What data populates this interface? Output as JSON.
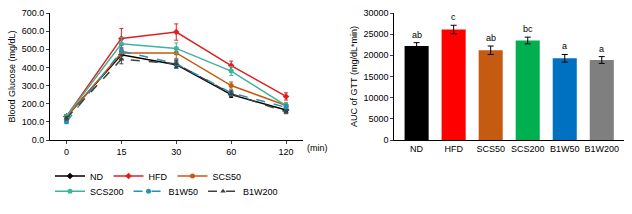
{
  "chart_data": [
    {
      "type": "line",
      "y_label": "Blood Glucose (mg/dL)",
      "x_label": "(min)",
      "categories": [
        "0",
        "15",
        "30",
        "60",
        "120"
      ],
      "ylim": [
        0,
        700
      ],
      "yticks": [
        {
          "value": 0,
          "label": "0.0"
        },
        {
          "value": 100,
          "label": "100.0"
        },
        {
          "value": 200,
          "label": "200.0"
        },
        {
          "value": 300,
          "label": "300.0"
        },
        {
          "value": 400,
          "label": "400.0"
        },
        {
          "value": 500,
          "label": "500.0"
        },
        {
          "value": 600,
          "label": "600.0"
        },
        {
          "value": 700,
          "label": "700.0"
        }
      ],
      "grid": false,
      "legend": "bottom",
      "series": [
        {
          "name": "ND",
          "color": "#000000",
          "marker": "diamond",
          "line_style": "solid",
          "values": [
            130,
            470,
            415,
            250,
            165
          ],
          "errors": [
            10,
            25,
            20,
            15,
            10
          ]
        },
        {
          "name": "HFD",
          "color": "#e02020",
          "marker": "diamond",
          "line_style": "solid",
          "values": [
            130,
            560,
            595,
            410,
            240
          ],
          "errors": [
            10,
            55,
            45,
            25,
            20
          ]
        },
        {
          "name": "SCS50",
          "color": "#c55a11",
          "marker": "circle",
          "line_style": "solid",
          "values": [
            125,
            480,
            480,
            300,
            190
          ],
          "errors": [
            10,
            30,
            30,
            20,
            15
          ]
        },
        {
          "name": "SCS200",
          "color": "#3cb39b",
          "marker": "circle",
          "line_style": "solid",
          "values": [
            130,
            530,
            505,
            380,
            190
          ],
          "errors": [
            10,
            35,
            30,
            25,
            15
          ]
        },
        {
          "name": "B1W50",
          "color": "#2a8fb0",
          "marker": "circle",
          "line_style": "dash",
          "values": [
            100,
            490,
            420,
            260,
            180
          ],
          "errors": [
            10,
            30,
            25,
            15,
            15
          ]
        },
        {
          "name": "B1W200",
          "color": "#404040",
          "marker": "triangle-up",
          "line_style": "dash",
          "values": [
            120,
            445,
            420,
            255,
            155
          ],
          "errors": [
            10,
            25,
            20,
            15,
            10
          ]
        }
      ]
    },
    {
      "type": "bar",
      "y_label": "AUC of GTT (mg/dL*min)",
      "categories": [
        "ND",
        "HFD",
        "SCS50",
        "SCS200",
        "B1W50",
        "B1W200"
      ],
      "values": [
        22200,
        26100,
        21200,
        23500,
        19300,
        18900
      ],
      "errors": [
        800,
        1000,
        1000,
        800,
        900,
        800
      ],
      "annotations": [
        "ab",
        "c",
        "ab",
        "bc",
        "a",
        "a"
      ],
      "colors": [
        "#000000",
        "#ff0000",
        "#c55a11",
        "#00b050",
        "#0070c0",
        "#7f7f7f"
      ],
      "ylim": [
        0,
        30000
      ],
      "yticks": [
        0,
        5000,
        10000,
        15000,
        20000,
        25000,
        30000
      ],
      "grid": false
    }
  ]
}
